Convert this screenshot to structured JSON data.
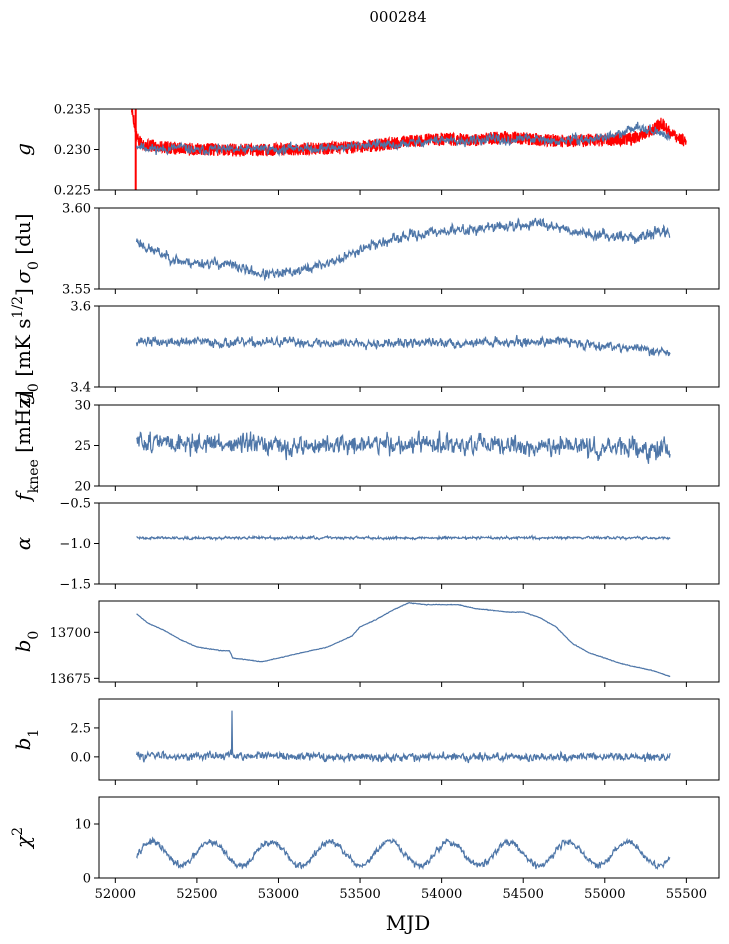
{
  "figure": {
    "title": "000284",
    "xlabel": "MJD",
    "xticks": [
      52000,
      52500,
      53000,
      53500,
      54000,
      54500,
      55000,
      55500
    ],
    "xlim": [
      51900,
      55700
    ]
  },
  "chart_data": [
    {
      "type": "line",
      "ylabel_main": "g",
      "ylabel_sub": "",
      "ylabel_rest": "",
      "yticks": [
        "0.225",
        "0.230",
        "0.235"
      ],
      "ylim": [
        0.225,
        0.235
      ],
      "series": [
        {
          "color": "#ff0000",
          "x": [
            52100,
            52115,
            52130,
            52145,
            52160,
            52200,
            52300,
            52400,
            52500,
            52600,
            52800,
            53000,
            53200,
            53400,
            53600,
            53800,
            54000,
            54200,
            54400,
            54600,
            54800,
            55000,
            55100,
            55200,
            55300,
            55350,
            55400,
            55450,
            55500
          ],
          "values": [
            0.235,
            0.2335,
            0.2315,
            0.231,
            0.2308,
            0.2305,
            0.2303,
            0.2301,
            0.23,
            0.23,
            0.2299,
            0.23,
            0.2301,
            0.2302,
            0.2305,
            0.231,
            0.2313,
            0.2312,
            0.2315,
            0.2312,
            0.231,
            0.2312,
            0.2313,
            0.2315,
            0.2325,
            0.2333,
            0.232,
            0.2313,
            0.231
          ],
          "band": 0.0008
        },
        {
          "color": "#4e76a8",
          "x": [
            52130,
            52200,
            52300,
            52400,
            52500,
            52600,
            52700,
            52800,
            52900,
            53000,
            53100,
            53200,
            53300,
            53400,
            53500,
            53600,
            53700,
            53800,
            53900,
            54000,
            54100,
            54200,
            54300,
            54400,
            54500,
            54600,
            54700,
            54800,
            54900,
            55000,
            55100,
            55200,
            55300,
            55400
          ],
          "values": [
            0.2305,
            0.2302,
            0.23,
            0.2303,
            0.2298,
            0.2301,
            0.2299,
            0.23,
            0.2302,
            0.2299,
            0.2303,
            0.2301,
            0.2302,
            0.2303,
            0.2305,
            0.2307,
            0.2304,
            0.2308,
            0.231,
            0.2312,
            0.2309,
            0.2311,
            0.2313,
            0.231,
            0.2314,
            0.2312,
            0.2309,
            0.2313,
            0.2312,
            0.2316,
            0.2318,
            0.233,
            0.2322,
            0.2315
          ],
          "noise": 0.0012,
          "seed": 11
        }
      ]
    },
    {
      "type": "line",
      "ylabel_main": "σ",
      "ylabel_sub": "0",
      "ylabel_rest": " [du]",
      "yticks": [
        "3.55",
        "3.60"
      ],
      "ylim": [
        3.55,
        3.6
      ],
      "series": [
        {
          "color": "#4e76a8",
          "x": [
            52130,
            52200,
            52300,
            52400,
            52500,
            52600,
            52700,
            52800,
            52900,
            53000,
            53100,
            53200,
            53300,
            53400,
            53500,
            53600,
            53700,
            53800,
            53900,
            54000,
            54100,
            54200,
            54300,
            54400,
            54500,
            54600,
            54700,
            54800,
            54900,
            55000,
            55100,
            55200,
            55300,
            55400
          ],
          "values": [
            3.58,
            3.575,
            3.571,
            3.567,
            3.566,
            3.566,
            3.565,
            3.562,
            3.559,
            3.559,
            3.561,
            3.563,
            3.566,
            3.569,
            3.575,
            3.578,
            3.58,
            3.583,
            3.584,
            3.586,
            3.586,
            3.587,
            3.588,
            3.589,
            3.589,
            3.591,
            3.589,
            3.586,
            3.584,
            3.583,
            3.583,
            3.581,
            3.585,
            3.585
          ],
          "noise": 0.007,
          "seed": 23
        }
      ]
    },
    {
      "type": "line",
      "ylabel_main": "g",
      "ylabel_sub": "0",
      "ylabel_rest": " [mK s",
      "ylabel_sup": "1/2",
      "ylabel_end": "]",
      "yticks": [
        "3.4",
        "3.6"
      ],
      "ylim": [
        3.4,
        3.6
      ],
      "series": [
        {
          "color": "#4e76a8",
          "x": [
            52130,
            52300,
            52500,
            52700,
            52900,
            53100,
            53300,
            53500,
            53700,
            53900,
            54100,
            54300,
            54500,
            54700,
            54800,
            54900,
            55100,
            55300,
            55400
          ],
          "values": [
            3.515,
            3.51,
            3.512,
            3.508,
            3.51,
            3.511,
            3.508,
            3.51,
            3.507,
            3.51,
            3.508,
            3.512,
            3.51,
            3.515,
            3.51,
            3.505,
            3.5,
            3.49,
            3.485
          ],
          "noise": 0.025,
          "seed": 37
        }
      ]
    },
    {
      "type": "line",
      "ylabel_main": "f",
      "ylabel_sub": "knee",
      "ylabel_rest": " [mHz]",
      "yticks": [
        "20",
        "25",
        "30"
      ],
      "ylim": [
        20,
        30
      ],
      "series": [
        {
          "color": "#4e76a8",
          "x": [
            52130,
            52400,
            52700,
            53000,
            53300,
            53600,
            53900,
            54200,
            54500,
            54800,
            55100,
            55400
          ],
          "values": [
            25.5,
            25.3,
            25.2,
            24.8,
            25.0,
            25.2,
            25.1,
            25.0,
            24.9,
            24.8,
            24.7,
            24.5
          ],
          "noise": 2.6,
          "seed": 51
        }
      ]
    },
    {
      "type": "line",
      "ylabel_main": "α",
      "ylabel_sub": "",
      "ylabel_rest": "",
      "yticks": [
        "−1.5",
        "−1.0",
        "−0.5"
      ],
      "ylim": [
        -1.5,
        -0.5
      ],
      "series": [
        {
          "color": "#4e76a8",
          "x": [
            52130,
            52700,
            53300,
            53900,
            54500,
            55100,
            55400
          ],
          "values": [
            -0.93,
            -0.93,
            -0.93,
            -0.93,
            -0.93,
            -0.93,
            -0.93
          ],
          "noise": 0.035,
          "seed": 63
        }
      ]
    },
    {
      "type": "line",
      "ylabel_main": "b",
      "ylabel_sub": "0",
      "ylabel_rest": "",
      "yticks": [
        "13675",
        "13700"
      ],
      "ylim": [
        13673,
        13717
      ],
      "series": [
        {
          "color": "#4e76a8",
          "x": [
            52130,
            52200,
            52300,
            52400,
            52500,
            52650,
            52700,
            52720,
            52900,
            53100,
            53300,
            53450,
            53500,
            53600,
            53700,
            53800,
            53900,
            54000,
            54100,
            54200,
            54300,
            54400,
            54500,
            54600,
            54700,
            54800,
            54900,
            55000,
            55100,
            55200,
            55300,
            55400
          ],
          "values": [
            13710,
            13705,
            13701,
            13696,
            13692,
            13690,
            13690,
            13686,
            13684,
            13688,
            13692,
            13698,
            13703,
            13707,
            13712,
            13716,
            13715,
            13715,
            13715,
            13713,
            13712,
            13711,
            13711,
            13708,
            13703,
            13694,
            13689,
            13686,
            13683,
            13681,
            13679,
            13676
          ],
          "noise": 0.35,
          "seed": 71
        }
      ]
    },
    {
      "type": "line",
      "ylabel_main": "b",
      "ylabel_sub": "1",
      "ylabel_rest": "",
      "yticks": [
        "0.0",
        "2.5"
      ],
      "ylim": [
        -2.0,
        5.0
      ],
      "series": [
        {
          "color": "#4e76a8",
          "x": [
            52130,
            52700,
            53300,
            53900,
            54500,
            55100,
            55400
          ],
          "values": [
            0.1,
            0.1,
            0.0,
            0.0,
            0.0,
            0.0,
            0.0
          ],
          "noise": 0.75,
          "seed": 83,
          "spike": {
            "x": 52715,
            "value": 4.0
          }
        }
      ]
    },
    {
      "type": "line",
      "ylabel_main": "χ",
      "ylabel_sub": "",
      "ylabel_rest": "",
      "ylabel_sup": "2",
      "yticks": [
        "0",
        "10"
      ],
      "ylim": [
        0,
        15
      ],
      "series": [
        {
          "color": "#4e76a8",
          "x": [
            52130,
            55400
          ],
          "values": [
            4.5,
            4.5
          ],
          "noise": 1.3,
          "seed": 97,
          "period": 365,
          "amp": 2.2
        }
      ]
    }
  ]
}
